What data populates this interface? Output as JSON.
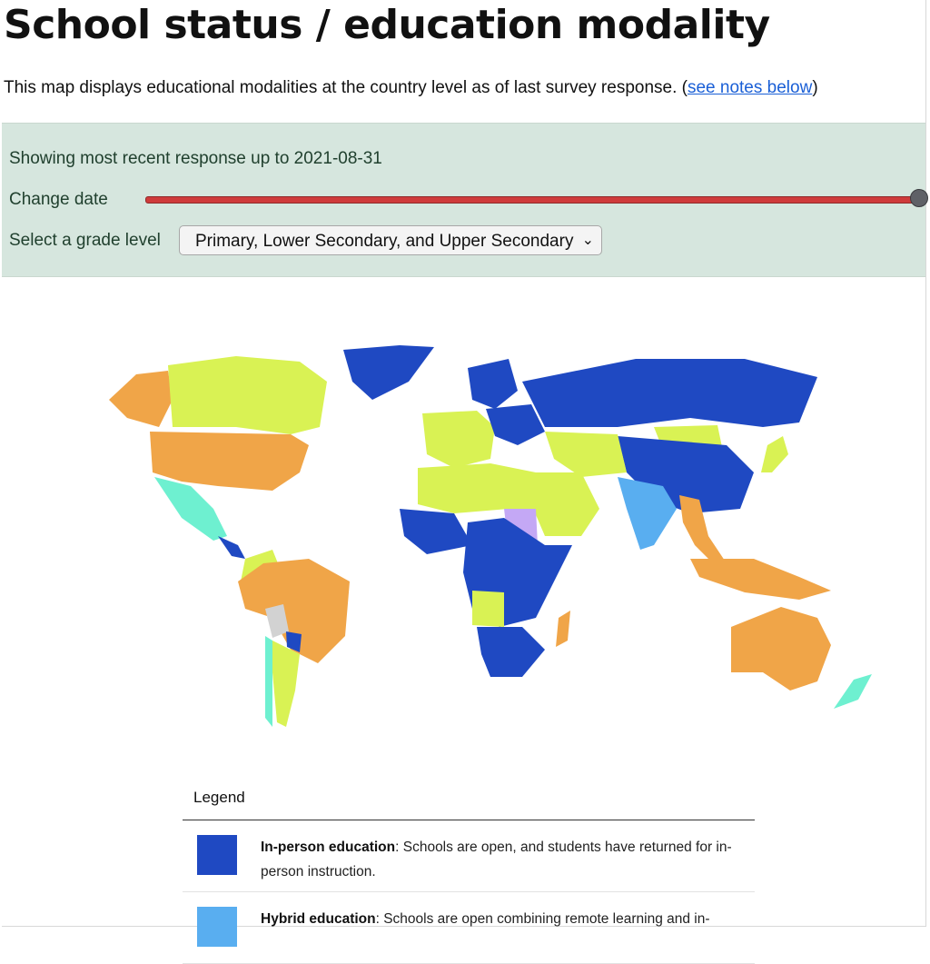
{
  "header": {
    "title": "School status / education modality",
    "intro_text": "This map displays educational modalities at the country level as of last survey response. (",
    "intro_link": "see notes below",
    "intro_close": ")"
  },
  "controls": {
    "showing_text": "Showing most recent response up to 2021-08-31",
    "change_date_label": "Change date",
    "slider_position_pct": 100,
    "grade_label": "Select a grade level",
    "grade_selected": "Primary, Lower Secondary, and Upper Secondary"
  },
  "colors": {
    "in_person": "#1f49c2",
    "hybrid": "#59aef0",
    "partial": "#d9f254",
    "remote": "#f0a548",
    "mixed": "#6ef0d0",
    "closed": "#c4a8f5",
    "no_data": "#d2d2d2",
    "accent": "#cf3b3b"
  },
  "legend": {
    "title": "Legend",
    "items": [
      {
        "name": "In-person education",
        "description": ": Schools are open, and students have returned for in-person instruction.",
        "color": "#1f49c2"
      },
      {
        "name": "Hybrid education",
        "description": ": Schools are open combining remote learning and in-",
        "color": "#59aef0"
      }
    ]
  }
}
